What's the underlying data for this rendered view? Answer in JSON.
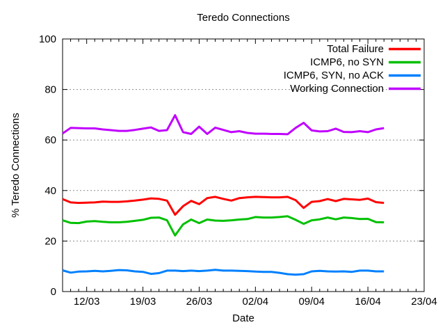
{
  "chart_data": {
    "type": "line",
    "title": "Teredo Connections",
    "xlabel": "Date",
    "ylabel": "% Teredo Connections",
    "ylim": [
      0,
      100
    ],
    "y_ticks": [
      0,
      20,
      40,
      60,
      80,
      100
    ],
    "grid_y": [
      20,
      40,
      60,
      80
    ],
    "grid_color": "#8c8c8c",
    "x_range_days": 45,
    "x_major_ticks": [
      {
        "day": 3,
        "label": "12/03"
      },
      {
        "day": 10,
        "label": "19/03"
      },
      {
        "day": 17,
        "label": "26/03"
      },
      {
        "day": 24,
        "label": "02/04"
      },
      {
        "day": 31,
        "label": "09/04"
      },
      {
        "day": 38,
        "label": "16/04"
      },
      {
        "day": 45,
        "label": "23/04"
      }
    ],
    "x_minor_tick_every_days": 1,
    "legend_position": "top-right-inside",
    "series": [
      {
        "id": "total-failure",
        "name": "Total Failure",
        "color": "#ff0000",
        "start_day": 0,
        "values": [
          36.6,
          35.3,
          35.1,
          35.2,
          35.3,
          35.6,
          35.5,
          35.5,
          35.7,
          36.0,
          36.4,
          36.9,
          36.7,
          36.0,
          30.4,
          33.8,
          35.9,
          34.6,
          37.0,
          37.5,
          36.7,
          36.0,
          37.0,
          37.3,
          37.5,
          37.4,
          37.3,
          37.3,
          37.5,
          36.2,
          33.1,
          35.5,
          35.8,
          36.6,
          35.8,
          36.7,
          36.5,
          36.3,
          36.8,
          35.4,
          35.1
        ]
      },
      {
        "id": "icmp6-no-syn",
        "name": "ICMP6, no SYN",
        "color": "#00c000",
        "start_day": 0,
        "values": [
          28.2,
          27.2,
          27.1,
          27.7,
          27.9,
          27.6,
          27.4,
          27.4,
          27.6,
          28.0,
          28.4,
          29.2,
          29.3,
          28.2,
          22.2,
          26.6,
          28.5,
          27.1,
          28.5,
          28.1,
          28.0,
          28.2,
          28.5,
          28.7,
          29.5,
          29.3,
          29.3,
          29.5,
          29.8,
          28.4,
          26.8,
          28.2,
          28.6,
          29.3,
          28.6,
          29.3,
          29.1,
          28.7,
          28.8,
          27.5,
          27.4
        ]
      },
      {
        "id": "icmp6-syn-no-ack",
        "name": "ICMP6, SYN, no ACK",
        "color": "#0080ff",
        "start_day": 0,
        "values": [
          8.4,
          7.5,
          7.9,
          8.0,
          8.2,
          8.0,
          8.2,
          8.5,
          8.4,
          8.0,
          7.8,
          7.0,
          7.3,
          8.3,
          8.3,
          8.1,
          8.3,
          8.1,
          8.3,
          8.6,
          8.3,
          8.3,
          8.2,
          8.1,
          7.9,
          7.8,
          7.8,
          7.4,
          6.9,
          6.7,
          6.9,
          8.0,
          8.2,
          8.0,
          7.9,
          8.0,
          7.8,
          8.3,
          8.3,
          8.0,
          8.0
        ]
      },
      {
        "id": "working-connection",
        "name": "Working Connection",
        "color": "#c000ff",
        "start_day": 0,
        "values": [
          62.6,
          64.8,
          64.7,
          64.6,
          64.6,
          64.2,
          63.9,
          63.6,
          63.6,
          64.0,
          64.5,
          65.0,
          63.6,
          63.9,
          69.8,
          63.1,
          62.4,
          65.3,
          62.4,
          64.9,
          64.0,
          63.1,
          63.5,
          62.8,
          62.5,
          62.5,
          62.4,
          62.4,
          62.3,
          64.8,
          66.8,
          63.8,
          63.4,
          63.5,
          64.5,
          63.2,
          63.1,
          63.5,
          63.1,
          64.2,
          64.7
        ]
      }
    ]
  }
}
